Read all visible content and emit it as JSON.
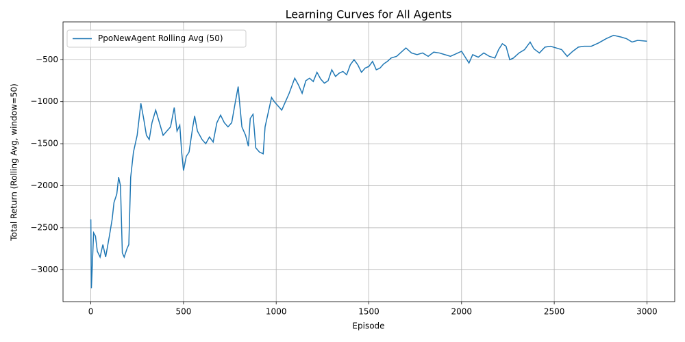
{
  "chart_data": {
    "type": "line",
    "title": "Learning Curves for All Agents",
    "x_label": "Episode",
    "y_label": "Total Return (Rolling Avg, window=50)",
    "x": [
      0,
      3,
      8,
      15,
      25,
      35,
      50,
      65,
      80,
      100,
      115,
      125,
      140,
      150,
      160,
      170,
      180,
      195,
      205,
      215,
      230,
      250,
      270,
      285,
      300,
      315,
      330,
      350,
      370,
      390,
      410,
      430,
      450,
      465,
      480,
      490,
      500,
      515,
      530,
      550,
      560,
      575,
      600,
      620,
      640,
      660,
      680,
      700,
      720,
      740,
      760,
      780,
      795,
      800,
      815,
      835,
      850,
      860,
      875,
      890,
      910,
      930,
      940,
      960,
      975,
      990,
      1010,
      1030,
      1050,
      1070,
      1090,
      1100,
      1120,
      1140,
      1160,
      1180,
      1200,
      1220,
      1240,
      1260,
      1280,
      1300,
      1320,
      1340,
      1360,
      1380,
      1400,
      1420,
      1440,
      1460,
      1480,
      1500,
      1520,
      1540,
      1560,
      1580,
      1600,
      1620,
      1650,
      1680,
      1700,
      1730,
      1760,
      1790,
      1820,
      1850,
      1880,
      1910,
      1940,
      1970,
      2000,
      2020,
      2040,
      2060,
      2090,
      2120,
      2150,
      2180,
      2200,
      2220,
      2240,
      2260,
      2280,
      2310,
      2340,
      2370,
      2390,
      2420,
      2450,
      2480,
      2510,
      2540,
      2570,
      2600,
      2630,
      2660,
      2700,
      2740,
      2780,
      2820,
      2860,
      2890,
      2920,
      2950,
      3000
    ],
    "series": [
      {
        "name": "PpoNewAgent Rolling Avg (50)",
        "color": "#1f77b4",
        "values": [
          -2400,
          -3220,
          -2950,
          -2560,
          -2600,
          -2780,
          -2850,
          -2700,
          -2850,
          -2600,
          -2400,
          -2200,
          -2100,
          -1900,
          -2000,
          -2800,
          -2850,
          -2750,
          -2700,
          -1900,
          -1600,
          -1400,
          -1020,
          -1200,
          -1400,
          -1450,
          -1250,
          -1100,
          -1250,
          -1400,
          -1350,
          -1300,
          -1070,
          -1350,
          -1280,
          -1600,
          -1820,
          -1650,
          -1600,
          -1300,
          -1170,
          -1350,
          -1450,
          -1500,
          -1420,
          -1480,
          -1250,
          -1160,
          -1250,
          -1300,
          -1250,
          -1000,
          -820,
          -950,
          -1300,
          -1400,
          -1530,
          -1200,
          -1150,
          -1550,
          -1600,
          -1620,
          -1300,
          -1100,
          -950,
          -1000,
          -1050,
          -1100,
          -1000,
          -900,
          -780,
          -720,
          -800,
          -900,
          -750,
          -720,
          -760,
          -650,
          -730,
          -780,
          -750,
          -620,
          -700,
          -660,
          -640,
          -680,
          -560,
          -500,
          -560,
          -650,
          -600,
          -580,
          -520,
          -620,
          -600,
          -550,
          -520,
          -480,
          -460,
          -400,
          -360,
          -420,
          -440,
          -420,
          -460,
          -410,
          -420,
          -440,
          -460,
          -430,
          -400,
          -470,
          -540,
          -440,
          -470,
          -420,
          -460,
          -480,
          -380,
          -310,
          -340,
          -500,
          -480,
          -420,
          -380,
          -290,
          -370,
          -420,
          -350,
          -340,
          -360,
          -380,
          -460,
          -400,
          -350,
          -340,
          -340,
          -300,
          -250,
          -210,
          -230,
          -250,
          -290,
          -270,
          -280
        ]
      }
    ],
    "xlim": [
      -150,
      3150
    ],
    "ylim": [
      -3380,
      -50
    ],
    "xticks": [
      0,
      500,
      1000,
      1500,
      2000,
      2500,
      3000
    ],
    "yticks": [
      {
        "value": -3000,
        "label": "−3000"
      },
      {
        "value": -2500,
        "label": "−2500"
      },
      {
        "value": -2000,
        "label": "−2000"
      },
      {
        "value": -1500,
        "label": "−1500"
      },
      {
        "value": -1000,
        "label": "−1000"
      },
      {
        "value": -500,
        "label": "−500"
      }
    ],
    "grid": true,
    "legend": "upper left"
  }
}
